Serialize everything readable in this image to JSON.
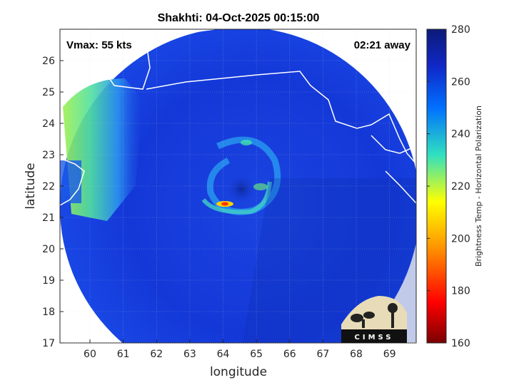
{
  "chart_data": {
    "type": "heatmap",
    "title": "Shakhti: 04-Oct-2025 00:15:00",
    "xlabel": "longitude",
    "ylabel": "latitude",
    "xlim": [
      59.1,
      69.8
    ],
    "ylim": [
      17,
      27
    ],
    "xticks": [
      60,
      61,
      62,
      63,
      64,
      65,
      66,
      67,
      68,
      69
    ],
    "yticks": [
      17,
      18,
      19,
      20,
      21,
      22,
      23,
      24,
      25,
      26
    ],
    "annotations": {
      "vmax": "Vmax: 55 kts",
      "time_away": "02:21 away"
    },
    "colorbar": {
      "label": "Brightness Temp - Horizontal Polarization",
      "range": [
        160,
        280
      ],
      "ticks": [
        160,
        180,
        200,
        220,
        240,
        260,
        280
      ],
      "colors": [
        "#7a0000",
        "#ff0000",
        "#ff9000",
        "#ffff00",
        "#30e0c0",
        "#0070ff",
        "#1028c8",
        "#0c1a78"
      ]
    },
    "storm_center": {
      "lon": 64.6,
      "lat": 22.0
    },
    "logo_text": "CIMSS"
  }
}
